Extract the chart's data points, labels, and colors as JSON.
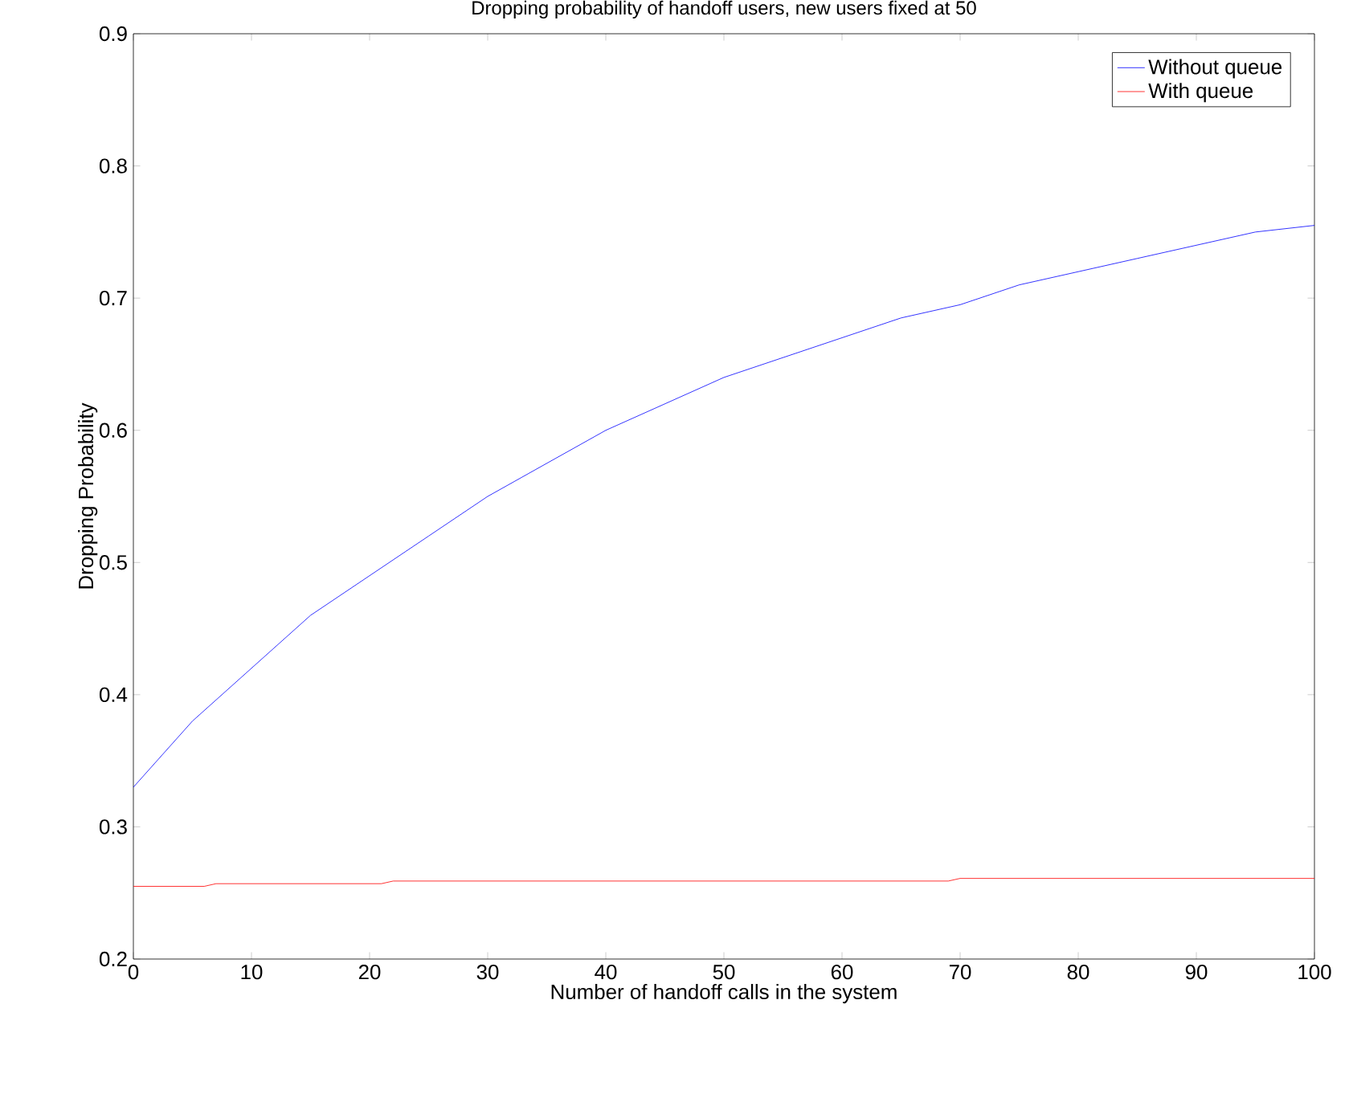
{
  "chart_data": {
    "type": "line",
    "title": "Dropping probability of handoff users, new users fixed at 50",
    "xlabel": "Number of handoff calls in the system",
    "ylabel": "Dropping Probability",
    "x": [
      0,
      5,
      10,
      15,
      20,
      25,
      30,
      35,
      40,
      45,
      50,
      55,
      60,
      65,
      70,
      75,
      80,
      85,
      90,
      95,
      100
    ],
    "series": [
      {
        "name": "Without queue",
        "color": "#0000ff",
        "values": [
          0.33,
          0.38,
          0.42,
          0.46,
          0.49,
          0.52,
          0.55,
          0.575,
          0.6,
          0.62,
          0.64,
          0.655,
          0.67,
          0.685,
          0.695,
          0.71,
          0.72,
          0.73,
          0.74,
          0.75,
          0.755
        ]
      },
      {
        "name": "With queue",
        "color": "#ff0000",
        "x": [
          0,
          6,
          7,
          21,
          22,
          69,
          70,
          100
        ],
        "values": [
          0.255,
          0.255,
          0.257,
          0.257,
          0.259,
          0.259,
          0.261,
          0.261
        ]
      }
    ],
    "xlim": [
      0,
      100
    ],
    "ylim": [
      0.2,
      0.9
    ],
    "xticks": [
      0,
      10,
      20,
      30,
      40,
      50,
      60,
      70,
      80,
      90,
      100
    ],
    "yticks": [
      0.2,
      0.3,
      0.4,
      0.5,
      0.6,
      0.7,
      0.8,
      0.9
    ],
    "grid": false,
    "legend": "top right",
    "marker": "none",
    "line_style": "solid"
  }
}
